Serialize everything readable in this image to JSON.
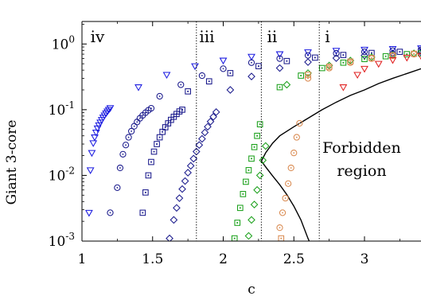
{
  "chart_data": {
    "type": "scatter",
    "title": "",
    "xlabel": "c",
    "ylabel": "Giant 3-core",
    "xscale": "linear",
    "yscale": "log",
    "xlim": [
      1,
      3.4
    ],
    "ylim": [
      0.001,
      2.2
    ],
    "grid": false,
    "legend": "none",
    "x_ticks": [
      1,
      1.5,
      2,
      2.5,
      3
    ],
    "x_tick_labels": [
      "1",
      "1.5",
      "2",
      "2.5",
      "3"
    ],
    "y_ticks": [
      1,
      0.1,
      0.01,
      0.001
    ],
    "y_tick_labels": [
      {
        "base": "10",
        "exp": "0"
      },
      {
        "base": "10",
        "exp": "-1"
      },
      {
        "base": "10",
        "exp": "-2"
      },
      {
        "base": "10",
        "exp": "-3"
      }
    ],
    "vlines": [
      {
        "x": 1.81,
        "style": "dotted",
        "color": "#000000"
      },
      {
        "x": 2.27,
        "style": "dotted",
        "color": "#000000"
      },
      {
        "x": 2.68,
        "style": "dotted",
        "color": "#000000"
      }
    ],
    "region_labels": [
      {
        "text": "iv",
        "x": 1.06
      },
      {
        "text": "iii",
        "x": 1.83
      },
      {
        "text": "ii",
        "x": 2.31
      },
      {
        "text": "i",
        "x": 2.72
      }
    ],
    "annotations": [
      {
        "lines": [
          "Forbidden",
          "region"
        ],
        "x": 2.98,
        "y": 0.012
      }
    ],
    "boundary": {
      "upper": [
        [
          2.27,
          0.0165
        ],
        [
          2.3,
          0.022
        ],
        [
          2.35,
          0.031
        ],
        [
          2.4,
          0.04
        ],
        [
          2.5,
          0.055
        ],
        [
          2.6,
          0.074
        ],
        [
          2.7,
          0.1
        ],
        [
          2.8,
          0.13
        ],
        [
          2.9,
          0.165
        ],
        [
          3.0,
          0.2
        ],
        [
          3.1,
          0.25
        ],
        [
          3.2,
          0.3
        ],
        [
          3.3,
          0.355
        ],
        [
          3.4,
          0.42
        ]
      ],
      "lower": [
        [
          2.27,
          0.0165
        ],
        [
          2.3,
          0.0135
        ],
        [
          2.35,
          0.0098
        ],
        [
          2.4,
          0.0072
        ],
        [
          2.45,
          0.0051
        ],
        [
          2.5,
          0.0034
        ],
        [
          2.55,
          0.0021
        ],
        [
          2.6,
          0.0011
        ],
        [
          2.62,
          0.00088
        ]
      ]
    },
    "colors": {
      "blue": "#1a1ae0",
      "navy": "#1a1a8c",
      "green": "#1aa01a",
      "orange": "#d98a50",
      "red": "#e02020",
      "curve": "#000000"
    },
    "series": [
      {
        "marker": "triangle",
        "color": "#1a1ae0",
        "x": [
          1.05,
          1.06,
          1.07,
          1.08,
          1.09,
          1.1,
          1.11,
          1.12,
          1.13,
          1.14,
          1.15,
          1.16,
          1.17,
          1.18,
          1.19,
          1.2,
          1.4,
          1.6,
          1.8,
          2.0,
          2.2,
          2.4,
          2.6,
          2.8,
          3.0,
          3.2,
          3.4
        ],
        "y": [
          0.0027,
          0.012,
          0.022,
          0.031,
          0.038,
          0.045,
          0.052,
          0.058,
          0.064,
          0.07,
          0.076,
          0.082,
          0.088,
          0.094,
          0.1,
          0.106,
          0.22,
          0.34,
          0.46,
          0.56,
          0.64,
          0.7,
          0.75,
          0.79,
          0.82,
          0.84,
          0.86
        ]
      },
      {
        "marker": "circle",
        "color": "#1a1a8c",
        "x": [
          1.2,
          1.25,
          1.27,
          1.29,
          1.31,
          1.33,
          1.35,
          1.37,
          1.39,
          1.41,
          1.43,
          1.45,
          1.47,
          1.49,
          1.55,
          1.7,
          1.85,
          2.0,
          2.2,
          2.4,
          2.6,
          2.8,
          3.0,
          3.2,
          3.4
        ],
        "y": [
          0.0027,
          0.0065,
          0.013,
          0.021,
          0.029,
          0.038,
          0.047,
          0.056,
          0.065,
          0.074,
          0.082,
          0.09,
          0.098,
          0.105,
          0.16,
          0.24,
          0.33,
          0.42,
          0.52,
          0.6,
          0.67,
          0.72,
          0.76,
          0.79,
          0.81
        ]
      },
      {
        "marker": "square",
        "color": "#1a1a8c",
        "x": [
          1.43,
          1.45,
          1.47,
          1.49,
          1.51,
          1.53,
          1.55,
          1.57,
          1.59,
          1.61,
          1.63,
          1.65,
          1.67,
          1.69,
          1.71,
          1.75,
          1.9,
          2.05,
          2.25,
          2.45,
          2.65,
          2.85,
          3.05,
          3.25,
          3.4
        ],
        "y": [
          0.0027,
          0.0055,
          0.01,
          0.016,
          0.023,
          0.03,
          0.038,
          0.046,
          0.054,
          0.062,
          0.07,
          0.078,
          0.086,
          0.094,
          0.1,
          0.19,
          0.27,
          0.36,
          0.46,
          0.55,
          0.62,
          0.68,
          0.73,
          0.76,
          0.78
        ]
      },
      {
        "marker": "diamond",
        "color": "#1a1a8c",
        "x": [
          1.62,
          1.65,
          1.67,
          1.69,
          1.71,
          1.73,
          1.75,
          1.77,
          1.79,
          1.81,
          1.83,
          1.85,
          1.87,
          1.89,
          1.91,
          1.93,
          1.95,
          2.05,
          2.2,
          2.4,
          2.6,
          2.8,
          3.0,
          3.2,
          3.4
        ],
        "y": [
          0.0011,
          0.0021,
          0.0032,
          0.0045,
          0.0062,
          0.0082,
          0.011,
          0.014,
          0.018,
          0.023,
          0.029,
          0.036,
          0.045,
          0.055,
          0.066,
          0.078,
          0.092,
          0.2,
          0.32,
          0.43,
          0.53,
          0.61,
          0.67,
          0.72,
          0.75
        ]
      },
      {
        "marker": "square",
        "color": "#1aa01a",
        "x": [
          2.08,
          2.1,
          2.12,
          2.14,
          2.16,
          2.18,
          2.2,
          2.22,
          2.24,
          2.26,
          2.4,
          2.55,
          2.7,
          2.85,
          3.0,
          3.15,
          3.3,
          3.4
        ],
        "y": [
          0.0011,
          0.0019,
          0.0032,
          0.0052,
          0.008,
          0.012,
          0.018,
          0.027,
          0.04,
          0.06,
          0.22,
          0.33,
          0.43,
          0.52,
          0.59,
          0.65,
          0.7,
          0.72
        ]
      },
      {
        "marker": "diamond",
        "color": "#1aa01a",
        "x": [
          2.18,
          2.2,
          2.22,
          2.24,
          2.26,
          2.28,
          2.3,
          2.45,
          2.6,
          2.75,
          2.9,
          3.05,
          3.2,
          3.35
        ],
        "y": [
          0.0012,
          0.0021,
          0.0036,
          0.006,
          0.01,
          0.017,
          0.028,
          0.24,
          0.36,
          0.47,
          0.56,
          0.63,
          0.68,
          0.72
        ]
      },
      {
        "marker": "circle",
        "color": "#d98a50",
        "x": [
          2.4,
          2.42,
          2.44,
          2.46,
          2.48,
          2.5,
          2.52,
          2.54,
          2.6,
          2.75,
          2.9,
          3.05,
          3.2,
          3.35
        ],
        "y": [
          0.0016,
          0.0027,
          0.0045,
          0.0075,
          0.013,
          0.022,
          0.038,
          0.062,
          0.3,
          0.43,
          0.52,
          0.6,
          0.66,
          0.7
        ]
      },
      {
        "marker": "square",
        "color": "#d98a50",
        "x": [
          2.41,
          2.6,
          2.75,
          2.9,
          3.05,
          3.2,
          3.35
        ],
        "y": [
          0.0011,
          0.34,
          0.45,
          0.54,
          0.61,
          0.67,
          0.71
        ]
      },
      {
        "marker": "triangle",
        "color": "#e02020",
        "x": [
          2.85,
          2.95,
          3.0,
          3.1,
          3.2,
          3.3,
          3.4
        ],
        "y": [
          0.22,
          0.34,
          0.42,
          0.5,
          0.57,
          0.62,
          0.66
        ]
      }
    ]
  }
}
